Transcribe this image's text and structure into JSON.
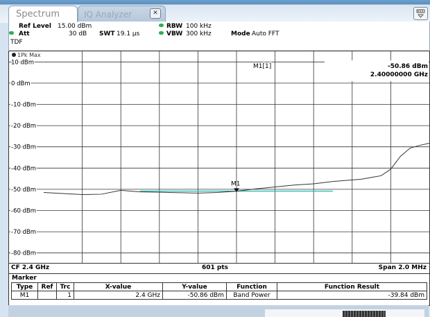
{
  "tabs": [
    {
      "label": "Spectrum",
      "active": true
    },
    {
      "label": "IQ Analyzer",
      "active": false
    }
  ],
  "tab_close_icon": "close-icon",
  "preset_icon": "preset-icon",
  "settings": {
    "ref_level_label": "Ref Level",
    "ref_level_value": "15.00 dBm",
    "att_label": "Att",
    "att_value": "30 dB",
    "swt_label": "SWT",
    "swt_value": "19.1 µs",
    "rbw_label": "RBW",
    "rbw_value": "100 kHz",
    "vbw_label": "VBW",
    "vbw_value": "300 kHz",
    "mode_label": "Mode",
    "mode_value": "Auto FFT",
    "tdf_label": "TDF",
    "indicator_color": "#2fae52"
  },
  "trace_label": "1Pk Max",
  "marker_readout": {
    "name": "M1[1]",
    "level": "-50.86 dBm",
    "freq": "2.40000000 GHz"
  },
  "status": {
    "cf": "CF 2.4 GHz",
    "points": "601 pts",
    "span": "Span 2.0 MHz"
  },
  "marker_table": {
    "title": "Marker",
    "headers": [
      "Type",
      "Ref",
      "Trc",
      "X-value",
      "Y-value",
      "Function",
      "Function Result"
    ],
    "rows": [
      {
        "type": "M1",
        "ref": "",
        "trc": "1",
        "x": "2.4 GHz",
        "y": "-50.86 dBm",
        "function": "Band Power",
        "result": "-39.84 dBm"
      }
    ]
  },
  "chart_data": {
    "type": "line",
    "xlabel": "",
    "ylabel": "",
    "y_unit": "dBm",
    "ylim": [
      -85,
      15
    ],
    "x_range_mhz": [
      -1.0,
      1.0
    ],
    "y_tick_labels": [
      "10 dBm",
      "0 dBm",
      "-10 dBm",
      "-20 dBm",
      "-30 dBm",
      "-40 dBm",
      "-50 dBm",
      "-60 dBm",
      "-70 dBm",
      "-80 dBm"
    ],
    "y_ticks": [
      10,
      0,
      -10,
      -20,
      -30,
      -40,
      -50,
      -60,
      -70,
      -80
    ],
    "x_gridlines": 10,
    "grid": true,
    "series": [
      {
        "color": "#333333",
        "x_mhz": [
          -1.0,
          -0.9,
          -0.8,
          -0.7,
          -0.6,
          -0.5,
          -0.4,
          -0.3,
          -0.2,
          -0.1,
          0.0,
          0.1,
          0.2,
          0.3,
          0.4,
          0.5,
          0.6,
          0.65,
          0.7,
          0.75,
          0.8,
          0.85,
          0.9,
          0.95,
          1.0
        ],
        "values": [
          -51.5,
          -52.0,
          -52.5,
          -52.3,
          -50.5,
          -51.2,
          -51.4,
          -51.6,
          -51.8,
          -51.5,
          -50.9,
          -49.8,
          -48.9,
          -48.0,
          -47.4,
          -46.3,
          -45.6,
          -45.2,
          -44.4,
          -43.6,
          -40.5,
          -34.5,
          -30.6,
          -29.3,
          -28.3
        ]
      }
    ],
    "band_power_span_mhz": [
      -0.5,
      0.5
    ],
    "band_power_level": -50.86,
    "band_power_color": "#20b2aa",
    "marker": {
      "name": "M1",
      "x_mhz": 0.0,
      "y": -50.86
    }
  }
}
